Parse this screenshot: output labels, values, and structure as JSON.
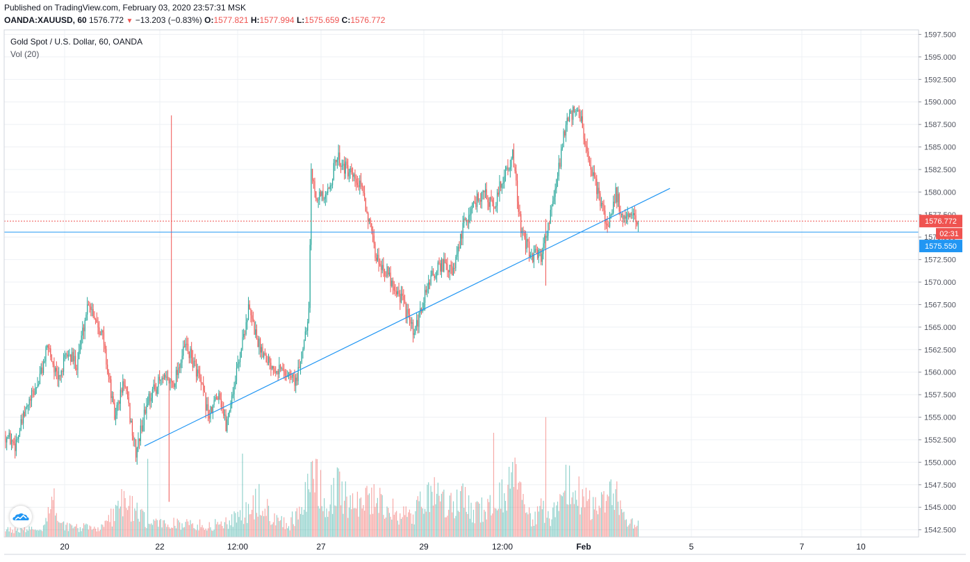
{
  "header": {
    "published": "Published on TradingView.com, February 03, 2020 23:57:31 MSK",
    "symbol": "OANDA:XAUUSD, 60",
    "last": "1576.772",
    "change": "−13.203 (−0.83%)",
    "o_label": "O:",
    "o_value": "1577.821",
    "h_label": "H:",
    "h_value": "1577.994",
    "l_label": "L:",
    "l_value": "1575.659",
    "c_label": "C:",
    "c_value": "1576.772"
  },
  "legend": {
    "title": "Gold Spot / U.S. Dollar, 60, OANDA",
    "volume": "Vol (20)"
  },
  "colors": {
    "up": "#26a69a",
    "down": "#ef5350",
    "trendline": "#2196f3",
    "price_line": "#ef5350",
    "grid": "#eef0f4"
  },
  "icons": {
    "logo": "tradingview-cloud-icon"
  },
  "chart_data": {
    "type": "candlestick",
    "price_axis": {
      "ticks": [
        "1597.500",
        "1595.000",
        "1592.500",
        "1590.000",
        "1587.500",
        "1585.000",
        "1582.500",
        "1580.000",
        "1577.500",
        "1575.000",
        "1572.500",
        "1570.000",
        "1567.500",
        "1565.000",
        "1562.500",
        "1560.000",
        "1557.500",
        "1555.000",
        "1552.500",
        "1550.000",
        "1547.500",
        "1545.000",
        "1542.500"
      ],
      "ylim": [
        1541.7,
        1598.0
      ]
    },
    "time_axis": {
      "ticks": [
        {
          "label": "20",
          "bold": false
        },
        {
          "label": "22",
          "bold": false
        },
        {
          "label": "12:00",
          "bold": false
        },
        {
          "label": "27",
          "bold": false
        },
        {
          "label": "29",
          "bold": false
        },
        {
          "label": "12:00",
          "bold": false
        },
        {
          "label": "Feb",
          "bold": true
        },
        {
          "label": "5",
          "bold": false
        },
        {
          "label": "7",
          "bold": false
        },
        {
          "label": "10",
          "bold": false
        }
      ]
    },
    "last_price": {
      "value": 1576.772,
      "label": "1576.772",
      "countdown": "02:31"
    },
    "horizontal_line": {
      "value": 1575.55,
      "label": "1575.550"
    },
    "trendline": {
      "from": [
        0,
        1551.8
      ],
      "to": [
        362,
        1580.4
      ]
    },
    "series": {
      "price_path": [
        [
          0,
          1553
        ],
        [
          8,
          1552
        ],
        [
          18,
          1556
        ],
        [
          28,
          1559
        ],
        [
          36,
          1563
        ],
        [
          44,
          1559
        ],
        [
          52,
          1562
        ],
        [
          60,
          1561
        ],
        [
          70,
          1568
        ],
        [
          82,
          1564
        ],
        [
          92,
          1555
        ],
        [
          100,
          1559
        ],
        [
          110,
          1551
        ],
        [
          120,
          1557
        ],
        [
          130,
          1559
        ],
        [
          142,
          1559
        ],
        [
          152,
          1563
        ],
        [
          162,
          1560
        ],
        [
          172,
          1555
        ],
        [
          180,
          1558
        ],
        [
          186,
          1554
        ],
        [
          195,
          1560
        ],
        [
          205,
          1567
        ],
        [
          214,
          1563
        ],
        [
          224,
          1561
        ],
        [
          236,
          1560
        ],
        [
          246,
          1559
        ],
        [
          256,
          1567
        ],
        [
          258,
          1582
        ],
        [
          262,
          1580
        ],
        [
          270,
          1579
        ],
        [
          280,
          1584
        ],
        [
          290,
          1582
        ],
        [
          302,
          1580
        ],
        [
          312,
          1573
        ],
        [
          322,
          1571
        ],
        [
          335,
          1568
        ],
        [
          345,
          1564
        ],
        [
          357,
          1570
        ],
        [
          368,
          1572
        ],
        [
          378,
          1571
        ],
        [
          386,
          1576
        ],
        [
          396,
          1579
        ],
        [
          404,
          1580
        ],
        [
          412,
          1578
        ],
        [
          418,
          1581
        ],
        [
          428,
          1584
        ],
        [
          436,
          1575
        ],
        [
          444,
          1573
        ],
        [
          452,
          1573
        ],
        [
          459,
          1577
        ],
        [
          464,
          1580
        ],
        [
          472,
          1587
        ],
        [
          480,
          1589
        ],
        [
          486,
          1588
        ],
        [
          492,
          1583
        ],
        [
          500,
          1580
        ],
        [
          508,
          1576
        ],
        [
          515,
          1580
        ],
        [
          521,
          1577
        ],
        [
          528,
          1577
        ],
        [
          534,
          1576.8
        ]
      ],
      "volume_path": [
        [
          0,
          8
        ],
        [
          30,
          8
        ],
        [
          40,
          38
        ],
        [
          50,
          12
        ],
        [
          60,
          10
        ],
        [
          80,
          10
        ],
        [
          90,
          22
        ],
        [
          98,
          40
        ],
        [
          108,
          30
        ],
        [
          120,
          14
        ],
        [
          140,
          15
        ],
        [
          150,
          14
        ],
        [
          160,
          13
        ],
        [
          170,
          12
        ],
        [
          180,
          14
        ],
        [
          200,
          22
        ],
        [
          214,
          38
        ],
        [
          226,
          22
        ],
        [
          240,
          14
        ],
        [
          256,
          50
        ],
        [
          262,
          65
        ],
        [
          270,
          32
        ],
        [
          280,
          50
        ],
        [
          290,
          38
        ],
        [
          300,
          40
        ],
        [
          312,
          44
        ],
        [
          322,
          30
        ],
        [
          332,
          26
        ],
        [
          345,
          24
        ],
        [
          356,
          50
        ],
        [
          366,
          38
        ],
        [
          375,
          32
        ],
        [
          386,
          40
        ],
        [
          396,
          24
        ],
        [
          404,
          32
        ],
        [
          412,
          32
        ],
        [
          420,
          45
        ],
        [
          428,
          70
        ],
        [
          436,
          35
        ],
        [
          444,
          20
        ],
        [
          452,
          30
        ],
        [
          460,
          20
        ],
        [
          468,
          42
        ],
        [
          476,
          60
        ],
        [
          482,
          50
        ],
        [
          490,
          38
        ],
        [
          500,
          28
        ],
        [
          508,
          42
        ],
        [
          515,
          52
        ],
        [
          520,
          25
        ],
        [
          526,
          15
        ],
        [
          534,
          12
        ]
      ],
      "spikes": [
        {
          "i": 138,
          "high": 1552.5,
          "low": 1545.6
        },
        {
          "i": 140,
          "high": 1588.5,
          "low": 1581
        },
        {
          "i": 456,
          "high": 1577.0,
          "low": 1569.6
        }
      ],
      "volume_spikes": [
        {
          "i": 120,
          "v": 75
        },
        {
          "i": 200,
          "v": 80
        },
        {
          "i": 262,
          "v": 75
        },
        {
          "i": 412,
          "v": 100
        },
        {
          "i": 456,
          "v": 115
        }
      ],
      "max_volume": 120
    }
  }
}
